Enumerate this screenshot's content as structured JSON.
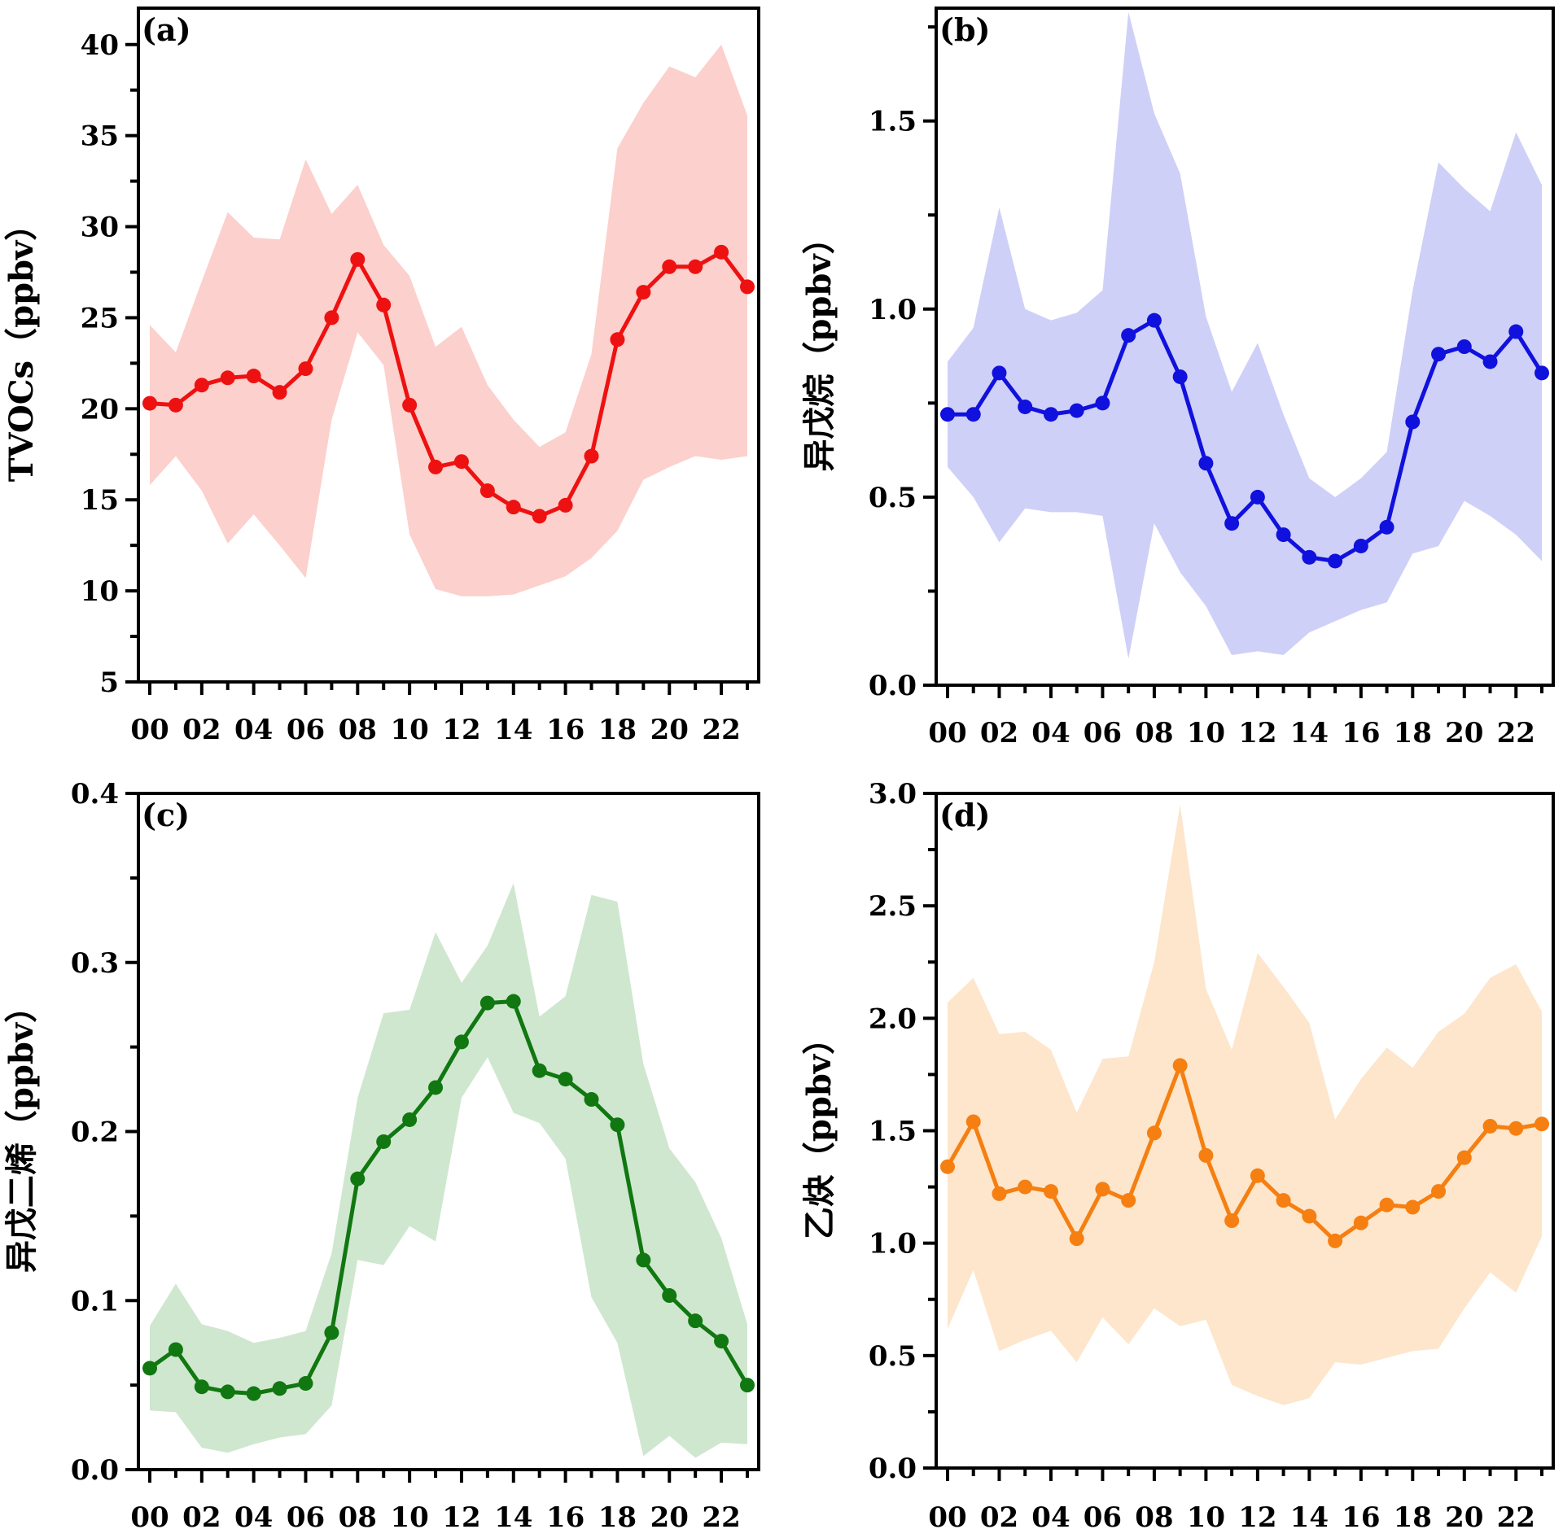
{
  "chart_data": [
    {
      "panel": "(a)",
      "type": "line",
      "ylabel": "TVOCs（ppbv）",
      "ylim": [
        5,
        42
      ],
      "yticks": [
        5,
        10,
        15,
        20,
        25,
        30,
        35,
        40
      ],
      "ytick_labels": [
        "5",
        "10",
        "15",
        "20",
        "25",
        "30",
        "35",
        "40"
      ],
      "color": "#ee1111",
      "band_color": "#fcd0cc",
      "x": [
        0,
        1,
        2,
        3,
        4,
        5,
        6,
        7,
        8,
        9,
        10,
        11,
        12,
        13,
        14,
        15,
        16,
        17,
        18,
        19,
        20,
        21,
        22,
        23
      ],
      "xtick_labels": [
        "00",
        "02",
        "04",
        "06",
        "08",
        "10",
        "12",
        "14",
        "16",
        "18",
        "20",
        "22"
      ],
      "values": [
        20.3,
        20.2,
        21.3,
        21.7,
        21.8,
        20.9,
        22.2,
        25.0,
        28.2,
        25.7,
        20.2,
        16.8,
        17.1,
        15.5,
        14.6,
        14.1,
        14.7,
        17.4,
        23.8,
        26.4,
        27.8,
        27.8,
        28.6,
        26.7
      ],
      "upper": [
        24.6,
        23.1,
        27.0,
        30.8,
        29.4,
        29.3,
        33.7,
        30.7,
        32.3,
        29.0,
        27.3,
        23.4,
        24.5,
        21.3,
        19.4,
        17.9,
        18.7,
        23.0,
        34.3,
        36.8,
        38.8,
        38.2,
        40.0,
        36.1
      ],
      "lower": [
        15.8,
        17.4,
        15.5,
        12.6,
        14.2,
        12.5,
        10.7,
        19.4,
        24.2,
        22.4,
        13.1,
        10.1,
        9.7,
        9.7,
        9.8,
        10.3,
        10.8,
        11.8,
        13.3,
        16.1,
        16.8,
        17.4,
        17.2,
        17.4
      ]
    },
    {
      "panel": "(b)",
      "type": "line",
      "ylabel": "异戊烷（ppbv）",
      "ylim": [
        0,
        1.8
      ],
      "yticks": [
        0,
        0.5,
        1.0,
        1.5
      ],
      "ytick_labels": [
        "0.0",
        "0.5",
        "1.0",
        "1.5"
      ],
      "color": "#1111dd",
      "band_color": "#cfd0f8",
      "x": [
        0,
        1,
        2,
        3,
        4,
        5,
        6,
        7,
        8,
        9,
        10,
        11,
        12,
        13,
        14,
        15,
        16,
        17,
        18,
        19,
        20,
        21,
        22,
        23
      ],
      "xtick_labels": [
        "00",
        "02",
        "04",
        "06",
        "08",
        "10",
        "12",
        "14",
        "16",
        "18",
        "20",
        "22"
      ],
      "values": [
        0.72,
        0.72,
        0.83,
        0.74,
        0.72,
        0.73,
        0.75,
        0.93,
        0.97,
        0.82,
        0.59,
        0.43,
        0.5,
        0.4,
        0.34,
        0.33,
        0.37,
        0.42,
        0.7,
        0.88,
        0.9,
        0.86,
        0.94,
        0.83
      ],
      "upper": [
        0.86,
        0.95,
        1.27,
        1.0,
        0.97,
        0.99,
        1.05,
        1.79,
        1.52,
        1.36,
        0.98,
        0.78,
        0.91,
        0.72,
        0.55,
        0.5,
        0.55,
        0.62,
        1.05,
        1.39,
        1.32,
        1.26,
        1.47,
        1.33
      ],
      "lower": [
        0.58,
        0.5,
        0.38,
        0.47,
        0.46,
        0.46,
        0.45,
        0.07,
        0.43,
        0.3,
        0.21,
        0.08,
        0.09,
        0.08,
        0.14,
        0.17,
        0.2,
        0.22,
        0.35,
        0.37,
        0.49,
        0.45,
        0.4,
        0.33
      ]
    },
    {
      "panel": "(c)",
      "type": "line",
      "ylabel": "异戊二烯（ppbv）",
      "ylim": [
        0,
        0.4
      ],
      "yticks": [
        0,
        0.1,
        0.2,
        0.3,
        0.4
      ],
      "ytick_labels": [
        "0.0",
        "0.1",
        "0.2",
        "0.3",
        "0.4"
      ],
      "color": "#117711",
      "band_color": "#cfe7cf",
      "x": [
        0,
        1,
        2,
        3,
        4,
        5,
        6,
        7,
        8,
        9,
        10,
        11,
        12,
        13,
        14,
        15,
        16,
        17,
        18,
        19,
        20,
        21,
        22,
        23
      ],
      "xtick_labels": [
        "00",
        "02",
        "04",
        "06",
        "08",
        "10",
        "12",
        "14",
        "16",
        "18",
        "20",
        "22"
      ],
      "values": [
        0.06,
        0.071,
        0.049,
        0.046,
        0.045,
        0.048,
        0.051,
        0.081,
        0.172,
        0.194,
        0.207,
        0.226,
        0.253,
        0.276,
        0.277,
        0.236,
        0.231,
        0.219,
        0.204,
        0.124,
        0.103,
        0.088,
        0.076,
        0.05
      ],
      "upper": [
        0.085,
        0.11,
        0.086,
        0.082,
        0.075,
        0.078,
        0.082,
        0.128,
        0.22,
        0.27,
        0.272,
        0.318,
        0.288,
        0.31,
        0.347,
        0.268,
        0.28,
        0.34,
        0.336,
        0.24,
        0.19,
        0.17,
        0.137,
        0.086
      ],
      "lower": [
        0.035,
        0.034,
        0.013,
        0.01,
        0.015,
        0.019,
        0.021,
        0.038,
        0.124,
        0.121,
        0.144,
        0.135,
        0.22,
        0.244,
        0.211,
        0.205,
        0.184,
        0.102,
        0.075,
        0.008,
        0.02,
        0.007,
        0.016,
        0.015
      ]
    },
    {
      "panel": "(d)",
      "type": "line",
      "ylabel": "乙炔（ppbv）",
      "ylim": [
        0,
        3.0
      ],
      "yticks": [
        0,
        0.5,
        1.0,
        1.5,
        2.0,
        2.5,
        3.0
      ],
      "ytick_labels": [
        "0.0",
        "0.5",
        "1.0",
        "1.5",
        "2.0",
        "2.5",
        "3.0"
      ],
      "color": "#f57f11",
      "band_color": "#fde6cc",
      "x": [
        0,
        1,
        2,
        3,
        4,
        5,
        6,
        7,
        8,
        9,
        10,
        11,
        12,
        13,
        14,
        15,
        16,
        17,
        18,
        19,
        20,
        21,
        22,
        23
      ],
      "xtick_labels": [
        "00",
        "02",
        "04",
        "06",
        "08",
        "10",
        "12",
        "14",
        "16",
        "18",
        "20",
        "22"
      ],
      "values": [
        1.34,
        1.54,
        1.22,
        1.25,
        1.23,
        1.02,
        1.24,
        1.19,
        1.49,
        1.79,
        1.39,
        1.1,
        1.3,
        1.19,
        1.12,
        1.01,
        1.09,
        1.17,
        1.16,
        1.23,
        1.38,
        1.52,
        1.51,
        1.53
      ],
      "upper": [
        2.07,
        2.18,
        1.93,
        1.94,
        1.86,
        1.58,
        1.82,
        1.83,
        2.25,
        2.95,
        2.13,
        1.86,
        2.29,
        2.14,
        1.98,
        1.55,
        1.73,
        1.87,
        1.78,
        1.94,
        2.02,
        2.18,
        2.24,
        2.03
      ],
      "lower": [
        0.62,
        0.88,
        0.52,
        0.57,
        0.61,
        0.47,
        0.67,
        0.55,
        0.71,
        0.63,
        0.66,
        0.37,
        0.32,
        0.28,
        0.31,
        0.47,
        0.46,
        0.49,
        0.52,
        0.53,
        0.71,
        0.87,
        0.78,
        1.03
      ]
    }
  ]
}
